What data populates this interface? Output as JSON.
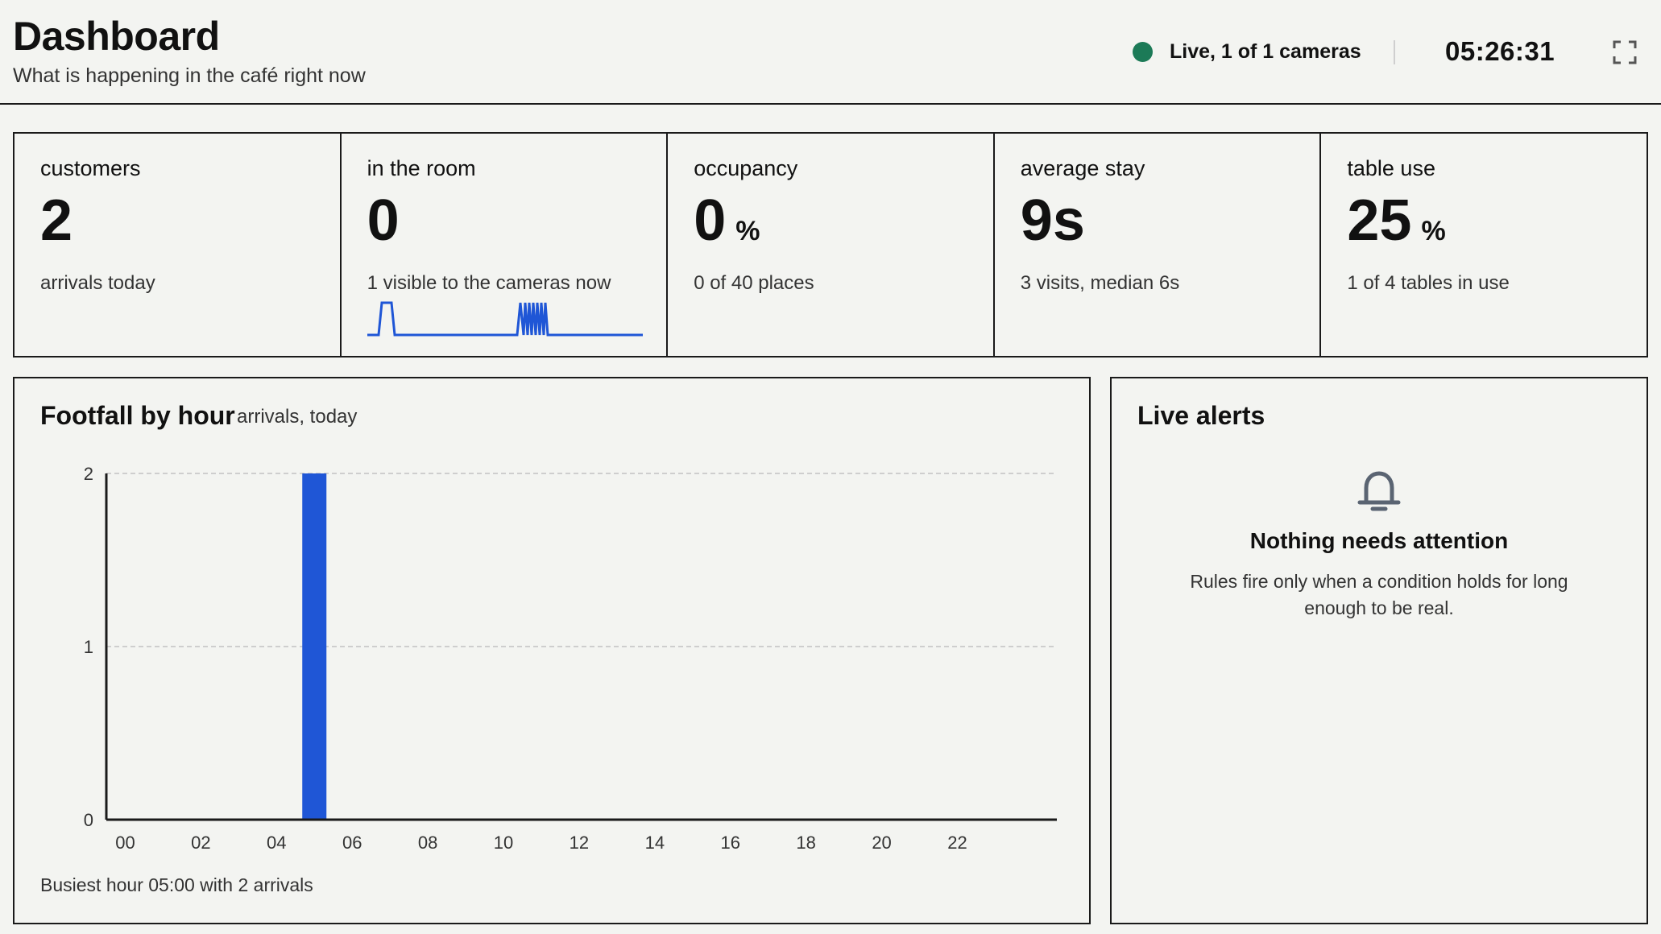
{
  "header": {
    "title": "Dashboard",
    "subtitle": "What is happening in the café right now",
    "live_status": "Live, 1 of 1 cameras",
    "live_color": "#1c7a57",
    "clock": "05:26:31",
    "fullscreen_icon": "fullscreen-icon"
  },
  "stats": [
    {
      "label": "customers",
      "value": "2",
      "unit": "",
      "detail": "arrivals today"
    },
    {
      "label": "in the room",
      "value": "0",
      "unit": "",
      "detail": "1 visible to the cameras now"
    },
    {
      "label": "occupancy",
      "value": "0",
      "unit": "%",
      "detail": "0 of 40 places"
    },
    {
      "label": "average stay",
      "value": "9s",
      "unit": "",
      "detail": "3 visits, median 6s"
    },
    {
      "label": "table use",
      "value": "25",
      "unit": "%",
      "detail": "1 of 4 tables in use"
    }
  ],
  "footfall": {
    "title": "Footfall by hour",
    "subtitle": "arrivals, today",
    "footnote": "Busiest hour 05:00 with 2 arrivals"
  },
  "alerts": {
    "title": "Live alerts",
    "icon": "bell-icon",
    "heading": "Nothing needs attention",
    "body": "Rules fire only when a condition holds for long enough to be real."
  },
  "colors": {
    "accent": "#1f56d6",
    "live": "#1c7a57"
  },
  "chart_data": {
    "type": "bar",
    "categories": [
      "00",
      "01",
      "02",
      "03",
      "04",
      "05",
      "06",
      "07",
      "08",
      "09",
      "10",
      "11",
      "12",
      "13",
      "14",
      "15",
      "16",
      "17",
      "18",
      "19",
      "20",
      "21",
      "22",
      "23"
    ],
    "values": [
      0,
      0,
      0,
      0,
      0,
      2,
      0,
      0,
      0,
      0,
      0,
      0,
      0,
      0,
      0,
      0,
      0,
      0,
      0,
      0,
      0,
      0,
      0,
      0
    ],
    "tick_labels": [
      "00",
      "02",
      "04",
      "06",
      "08",
      "10",
      "12",
      "14",
      "16",
      "18",
      "20",
      "22"
    ],
    "y_ticks": [
      0,
      1,
      2
    ],
    "ylim": [
      0,
      2
    ],
    "grid": "horizontal dashed",
    "bar_color": "#1f56d6"
  }
}
